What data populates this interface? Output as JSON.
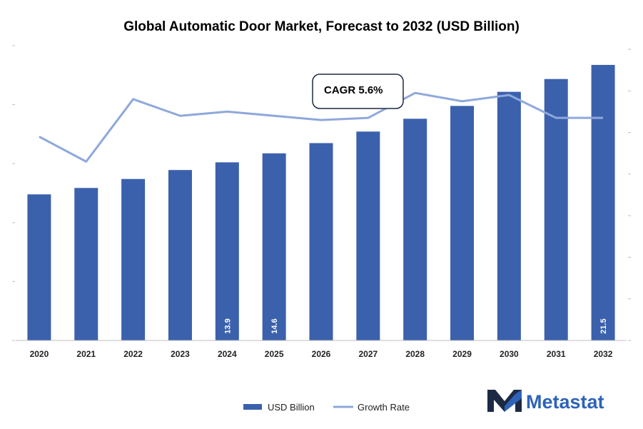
{
  "chart_data": {
    "type": "bar",
    "title": "Global Automatic Door Market, Forecast to 2032 (USD Billion)",
    "categories": [
      "2020",
      "2021",
      "2022",
      "2023",
      "2024",
      "2025",
      "2026",
      "2027",
      "2028",
      "2029",
      "2030",
      "2031",
      "2032"
    ],
    "series": [
      {
        "name": "USD Billion",
        "type": "bar",
        "color": "#3b61ad",
        "values": [
          11.4,
          11.9,
          12.6,
          13.3,
          13.9,
          14.6,
          15.4,
          16.3,
          17.3,
          18.3,
          19.4,
          20.4,
          21.5
        ],
        "labels": [
          "",
          "",
          "",
          "",
          "13.9",
          "14.6",
          "",
          "",
          "",
          "",
          "",
          "",
          "21.5"
        ]
      },
      {
        "name": "Growth Rate",
        "type": "line",
        "color": "#8fa8dc",
        "values": [
          4.9,
          4.3,
          5.8,
          5.4,
          5.5,
          5.4,
          5.3,
          5.35,
          5.95,
          5.75,
          5.9,
          5.35,
          5.35
        ]
      }
    ],
    "y_left_range": [
      0,
      23
    ],
    "y_right_range": [
      0,
      7
    ],
    "annotation": "CAGR 5.6%",
    "legend_position": "bottom"
  },
  "brand": {
    "name": "Metastat",
    "logo_icon": "metastat-m-logo-icon",
    "color": "#2e63b8",
    "dark": "#1d2a44"
  }
}
